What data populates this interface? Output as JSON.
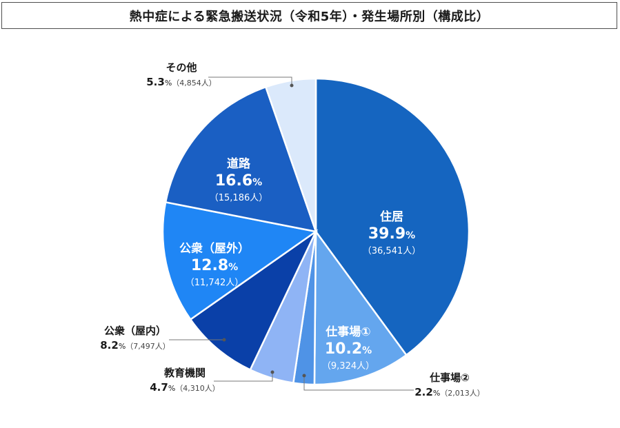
{
  "title": "熱中症による緊急搬送状況（令和5年）・発生場所別（構成比）",
  "chart_data": {
    "type": "pie",
    "start_angle_deg": 0,
    "direction": "clockwise",
    "slices": [
      {
        "label": "住居",
        "percent": 39.9,
        "count": "36,541人",
        "color": "#1565c0",
        "label_inside": true
      },
      {
        "label": "仕事場①",
        "percent": 10.2,
        "count": "9,324人",
        "color": "#64a6ee",
        "label_inside": true
      },
      {
        "label": "仕事場②",
        "percent": 2.2,
        "count": "2,013人",
        "color": "#4f93e6",
        "label_inside": false
      },
      {
        "label": "教育機関",
        "percent": 4.7,
        "count": "4,310人",
        "color": "#8fb4f5",
        "label_inside": false
      },
      {
        "label": "公衆（屋内）",
        "percent": 8.2,
        "count": "7,497人",
        "color": "#0a40a8",
        "label_inside": false
      },
      {
        "label": "公衆（屋外）",
        "percent": 12.8,
        "count": "11,742人",
        "color": "#1f86f5",
        "label_inside": true
      },
      {
        "label": "道路",
        "percent": 16.6,
        "count": "15,186人",
        "color": "#1a5fc3",
        "label_inside": true
      },
      {
        "label": "その他",
        "percent": 5.3,
        "count": "4,854人",
        "color": "#dbe9fb",
        "label_inside": false
      }
    ],
    "percent_suffix": "%",
    "count_open": "（",
    "count_close": "）"
  }
}
